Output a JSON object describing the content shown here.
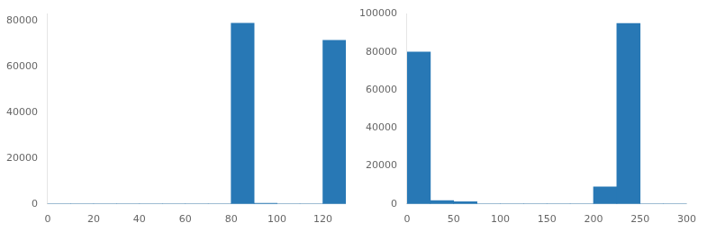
{
  "chart_data": [
    {
      "type": "histogram",
      "bins": [
        0,
        10,
        20,
        30,
        40,
        50,
        60,
        70,
        80,
        90,
        100,
        110,
        120,
        130
      ],
      "values": [
        0,
        0,
        0,
        0,
        0,
        0,
        0,
        0,
        79000,
        300,
        0,
        0,
        71500
      ],
      "color": "#2878b5",
      "xlim": [
        0,
        130
      ],
      "xticks": [
        0,
        20,
        40,
        60,
        80,
        100,
        120
      ],
      "ylim": [
        0,
        83000
      ],
      "yticks": [
        0,
        20000,
        40000,
        60000,
        80000
      ],
      "grid": false
    },
    {
      "type": "histogram",
      "bins": [
        0,
        25,
        50,
        75,
        100,
        125,
        150,
        175,
        200,
        225,
        250,
        275,
        300
      ],
      "values": [
        80000,
        1800,
        1200,
        0,
        0,
        0,
        0,
        0,
        9000,
        95000,
        0,
        0
      ],
      "color": "#2878b5",
      "xlim": [
        0,
        300
      ],
      "xticks": [
        0,
        50,
        100,
        150,
        200,
        250,
        300
      ],
      "ylim": [
        0,
        100000
      ],
      "yticks": [
        0,
        20000,
        40000,
        60000,
        80000,
        100000
      ],
      "grid": false
    }
  ]
}
